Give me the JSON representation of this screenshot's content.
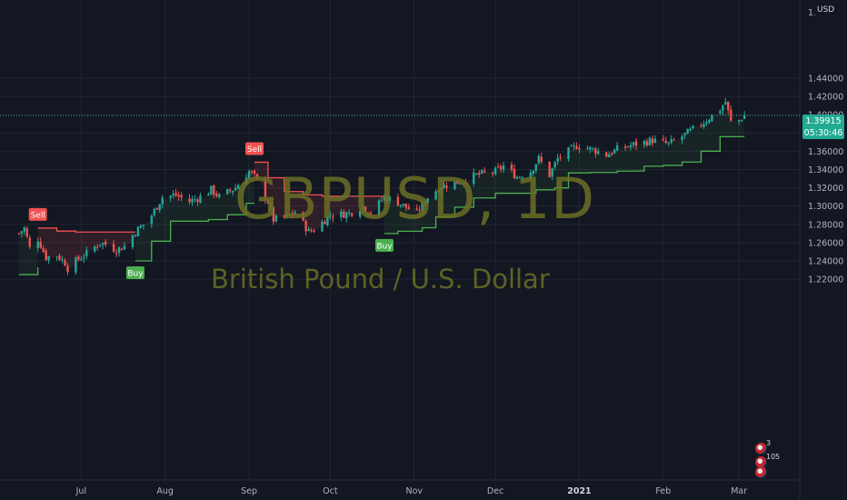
{
  "watermark": {
    "symbol": "GBPUSD, 1D",
    "description": "British Pound / U.S. Dollar"
  },
  "price_axis": {
    "currency": "USD",
    "top_label": "1.",
    "labels": [
      "1.44000",
      "1.42000",
      "1.40000",
      "1.38000",
      "1.36000",
      "1.34000",
      "1.32000",
      "1.30000",
      "1.28000",
      "1.26000",
      "1.24000",
      "1.22000"
    ]
  },
  "current_price": {
    "price": "1.39915",
    "countdown": "05:30:46",
    "color": "#22ab94"
  },
  "time_axis": {
    "labels": [
      {
        "text": "Jul",
        "bold": false
      },
      {
        "text": "Aug",
        "bold": false
      },
      {
        "text": "Sep",
        "bold": false
      },
      {
        "text": "Oct",
        "bold": false
      },
      {
        "text": "Nov",
        "bold": false
      },
      {
        "text": "Dec",
        "bold": false
      },
      {
        "text": "2021",
        "bold": true
      },
      {
        "text": "Feb",
        "bold": false
      },
      {
        "text": "Mar",
        "bold": false
      }
    ]
  },
  "events": {
    "badge_1": "3",
    "badge_2": "10",
    "badge_3": "5"
  },
  "chart_data": {
    "type": "candlestick",
    "symbol": "GBPUSD",
    "interval": "1D",
    "ylim": [
      1.2,
      1.46
    ],
    "grid": true,
    "colors": {
      "up": "#26a69a",
      "down": "#ef5350",
      "buy_line": "#4caf50",
      "sell_line": "#f05252"
    },
    "price_path": [
      [
        "2020-06-08",
        1.27
      ],
      [
        "2020-06-10",
        1.276
      ],
      [
        "2020-06-12",
        1.254
      ],
      [
        "2020-06-15",
        1.264
      ],
      [
        "2020-06-18",
        1.244
      ],
      [
        "2020-06-22",
        1.246
      ],
      [
        "2020-06-25",
        1.238
      ],
      [
        "2020-06-26",
        1.232
      ],
      [
        "2020-06-30",
        1.242
      ],
      [
        "2020-07-03",
        1.248
      ],
      [
        "2020-07-08",
        1.26
      ],
      [
        "2020-07-10",
        1.258
      ],
      [
        "2020-07-14",
        1.252
      ],
      [
        "2020-07-17",
        1.256
      ],
      [
        "2020-07-21",
        1.272
      ],
      [
        "2020-07-24",
        1.28
      ],
      [
        "2020-07-27",
        1.29
      ],
      [
        "2020-07-31",
        1.31
      ],
      [
        "2020-08-05",
        1.312
      ],
      [
        "2020-08-10",
        1.305
      ],
      [
        "2020-08-14",
        1.31
      ],
      [
        "2020-08-18",
        1.318
      ],
      [
        "2020-08-21",
        1.31
      ],
      [
        "2020-08-27",
        1.32
      ],
      [
        "2020-09-01",
        1.338
      ],
      [
        "2020-09-03",
        1.332
      ],
      [
        "2020-09-08",
        1.305
      ],
      [
        "2020-09-10",
        1.285
      ],
      [
        "2020-09-15",
        1.288
      ],
      [
        "2020-09-18",
        1.294
      ],
      [
        "2020-09-23",
        1.272
      ],
      [
        "2020-09-25",
        1.274
      ],
      [
        "2020-10-01",
        1.29
      ],
      [
        "2020-10-08",
        1.292
      ],
      [
        "2020-10-13",
        1.3
      ],
      [
        "2020-10-16",
        1.292
      ],
      [
        "2020-10-21",
        1.31
      ],
      [
        "2020-10-26",
        1.304
      ],
      [
        "2020-11-02",
        1.292
      ],
      [
        "2020-11-06",
        1.31
      ],
      [
        "2020-11-11",
        1.322
      ],
      [
        "2020-11-17",
        1.326
      ],
      [
        "2020-11-24",
        1.334
      ],
      [
        "2020-12-01",
        1.338
      ],
      [
        "2020-12-04",
        1.344
      ],
      [
        "2020-12-09",
        1.332
      ],
      [
        "2020-12-14",
        1.338
      ],
      [
        "2020-12-17",
        1.352
      ],
      [
        "2020-12-21",
        1.334
      ],
      [
        "2020-12-24",
        1.352
      ],
      [
        "2020-12-31",
        1.366
      ],
      [
        "2021-01-06",
        1.362
      ],
      [
        "2021-01-11",
        1.356
      ],
      [
        "2021-01-15",
        1.362
      ],
      [
        "2021-01-22",
        1.368
      ],
      [
        "2021-01-28",
        1.372
      ],
      [
        "2021-02-03",
        1.368
      ],
      [
        "2021-02-09",
        1.378
      ],
      [
        "2021-02-16",
        1.392
      ],
      [
        "2021-02-22",
        1.406
      ],
      [
        "2021-02-24",
        1.414
      ],
      [
        "2021-02-26",
        1.392
      ],
      [
        "2021-03-01",
        1.394
      ],
      [
        "2021-03-03",
        1.39915
      ]
    ],
    "signals": [
      {
        "type": "Sell",
        "date": "2020-06-15",
        "price": 1.276
      },
      {
        "type": "Buy",
        "date": "2020-07-21",
        "price": 1.24
      },
      {
        "type": "Sell",
        "date": "2020-09-03",
        "price": 1.348
      },
      {
        "type": "Buy",
        "date": "2020-10-21",
        "price": 1.27
      }
    ]
  }
}
